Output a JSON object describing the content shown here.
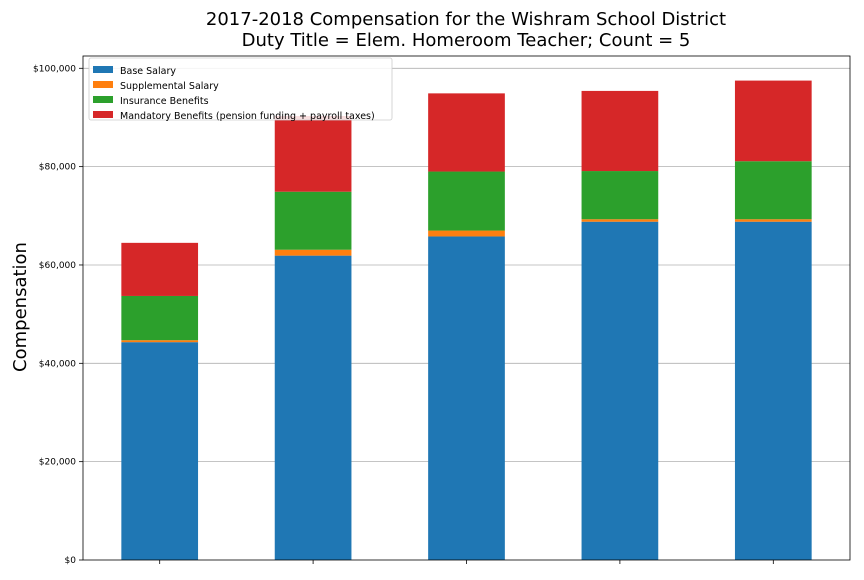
{
  "chart_data": {
    "type": "bar",
    "stacked": true,
    "title_line1": "2017-2018 Compensation for the Wishram School District",
    "title_line2": "Duty Title = Elem. Homeroom Teacher; Count = 5",
    "ylabel": "Compensation",
    "xlabel": "",
    "categories": [
      "",
      "",
      "",
      "",
      ""
    ],
    "ylim": [
      0,
      102500
    ],
    "yticks": [
      0,
      20000,
      40000,
      60000,
      80000,
      100000
    ],
    "ytick_labels": [
      "$0",
      "$20,000",
      "$40,000",
      "$60,000",
      "$80,000",
      "$100,000"
    ],
    "grid": "horizontal",
    "legend_position": "top-left",
    "series": [
      {
        "name": "Base Salary",
        "color": "#1f77b4",
        "values": [
          44300,
          61900,
          65800,
          68800,
          68800
        ]
      },
      {
        "name": "Supplemental Salary",
        "color": "#ff7f0e",
        "values": [
          400,
          1200,
          1200,
          500,
          500
        ]
      },
      {
        "name": "Insurance Benefits",
        "color": "#2ca02c",
        "values": [
          9000,
          11800,
          12000,
          9800,
          11800
        ]
      },
      {
        "name": "Mandatory Benefits (pension funding + payroll taxes)",
        "color": "#d62728",
        "values": [
          10800,
          15400,
          15900,
          16300,
          16400
        ]
      }
    ]
  }
}
